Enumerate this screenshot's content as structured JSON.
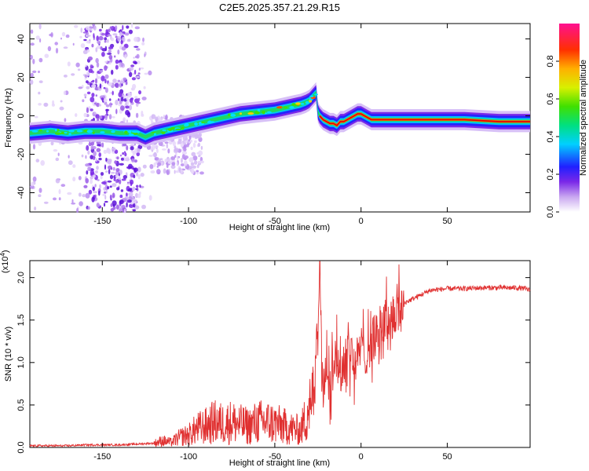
{
  "title": "C2E5.2025.357.21.29.R15",
  "chart_data": [
    {
      "type": "heatmap",
      "xlabel": "Height of straight line (km)",
      "ylabel": "Frequency (Hz)",
      "xlim": [
        -192,
        98
      ],
      "ylim": [
        -50,
        48
      ],
      "xticks": [
        -150,
        -100,
        -50,
        0,
        50
      ],
      "yticks": [
        -40,
        -20,
        0,
        20,
        40
      ],
      "xtick_labels": [
        "-150",
        "-100",
        "-50",
        "0",
        "50"
      ],
      "ytick_labels": [
        "-40",
        "-20",
        "0",
        "20",
        "40"
      ],
      "colorbar": {
        "label": "Normalized spectral amplitude",
        "range": [
          0,
          1
        ],
        "ticks": [
          0.0,
          0.2,
          0.4,
          0.6,
          0.8
        ],
        "tick_labels": [
          "0.0",
          "0.2",
          "0.4",
          "0.6",
          "0.8"
        ]
      },
      "ridge": {
        "x": [
          -192,
          -180,
          -170,
          -160,
          -150,
          -140,
          -130,
          -125,
          -120,
          -110,
          -100,
          -90,
          -80,
          -70,
          -60,
          -50,
          -45,
          -40,
          -35,
          -32,
          -30,
          -28,
          -27,
          -26,
          -25,
          -24,
          -22,
          -20,
          -18,
          -16,
          -14,
          -12,
          -10,
          -8,
          -6,
          -4,
          -2,
          0,
          2,
          4,
          6,
          10,
          20,
          40,
          60,
          80,
          98
        ],
        "y": [
          -9,
          -8,
          -9,
          -8,
          -8,
          -9,
          -9,
          -11,
          -9,
          -7,
          -5,
          -3,
          -1,
          1,
          2,
          3,
          4,
          5,
          6,
          7,
          8,
          10,
          11,
          12,
          2,
          0,
          -2,
          -3,
          -4,
          -4,
          -5,
          -3,
          -3,
          -2,
          -1,
          0,
          1,
          1,
          0,
          -1,
          -2,
          -2,
          -2,
          -2,
          -2,
          -3,
          -3
        ]
      }
    },
    {
      "type": "line",
      "ylabel": "SNR (10 * v/v)",
      "xlabel": "Height of straight line (km)",
      "y_multiplier": "(x10",
      "y_multiplier_exp": "4",
      "xlim": [
        -192,
        98
      ],
      "ylim": [
        0,
        2.2
      ],
      "xticks": [
        -150,
        -100,
        -50,
        0,
        50
      ],
      "yticks": [
        0.0,
        0.5,
        1.0,
        1.5,
        2.0
      ],
      "xtick_labels": [
        "-150",
        "-100",
        "-50",
        "0",
        "50"
      ],
      "ytick_labels": [
        "0.0",
        "0.5",
        "1.0",
        "1.5",
        "2.0"
      ],
      "series": [
        {
          "name": "SNR",
          "x": [
            -192,
            -180,
            -170,
            -160,
            -150,
            -140,
            -130,
            -120,
            -115,
            -110,
            -105,
            -100,
            -95,
            -90,
            -85,
            -80,
            -75,
            -70,
            -65,
            -60,
            -55,
            -50,
            -45,
            -40,
            -35,
            -32,
            -30,
            -28,
            -26,
            -25,
            -24,
            -23,
            -22,
            -21,
            -20,
            -18,
            -16,
            -14,
            -12,
            -10,
            -8,
            -6,
            -4,
            -2,
            0,
            2,
            4,
            6,
            8,
            10,
            15,
            20,
            25,
            30,
            35,
            40,
            50,
            60,
            70,
            80,
            90,
            95,
            98
          ],
          "y": [
            0.02,
            0.02,
            0.02,
            0.03,
            0.03,
            0.03,
            0.04,
            0.05,
            0.08,
            0.06,
            0.12,
            0.15,
            0.22,
            0.25,
            0.3,
            0.28,
            0.3,
            0.27,
            0.25,
            0.3,
            0.3,
            0.28,
            0.25,
            0.22,
            0.2,
            0.35,
            0.55,
            0.7,
            1.2,
            1.6,
            2.1,
            1.4,
            0.5,
            0.9,
            1.0,
            0.6,
            1.1,
            1.2,
            0.8,
            1.0,
            1.25,
            1.1,
            1.0,
            1.05,
            1.2,
            1.1,
            1.15,
            1.25,
            1.3,
            1.4,
            1.5,
            1.6,
            1.7,
            1.75,
            1.8,
            1.85,
            1.87,
            1.87,
            1.88,
            1.88,
            1.88,
            1.87,
            1.85
          ],
          "color": "#e03030"
        }
      ]
    }
  ]
}
